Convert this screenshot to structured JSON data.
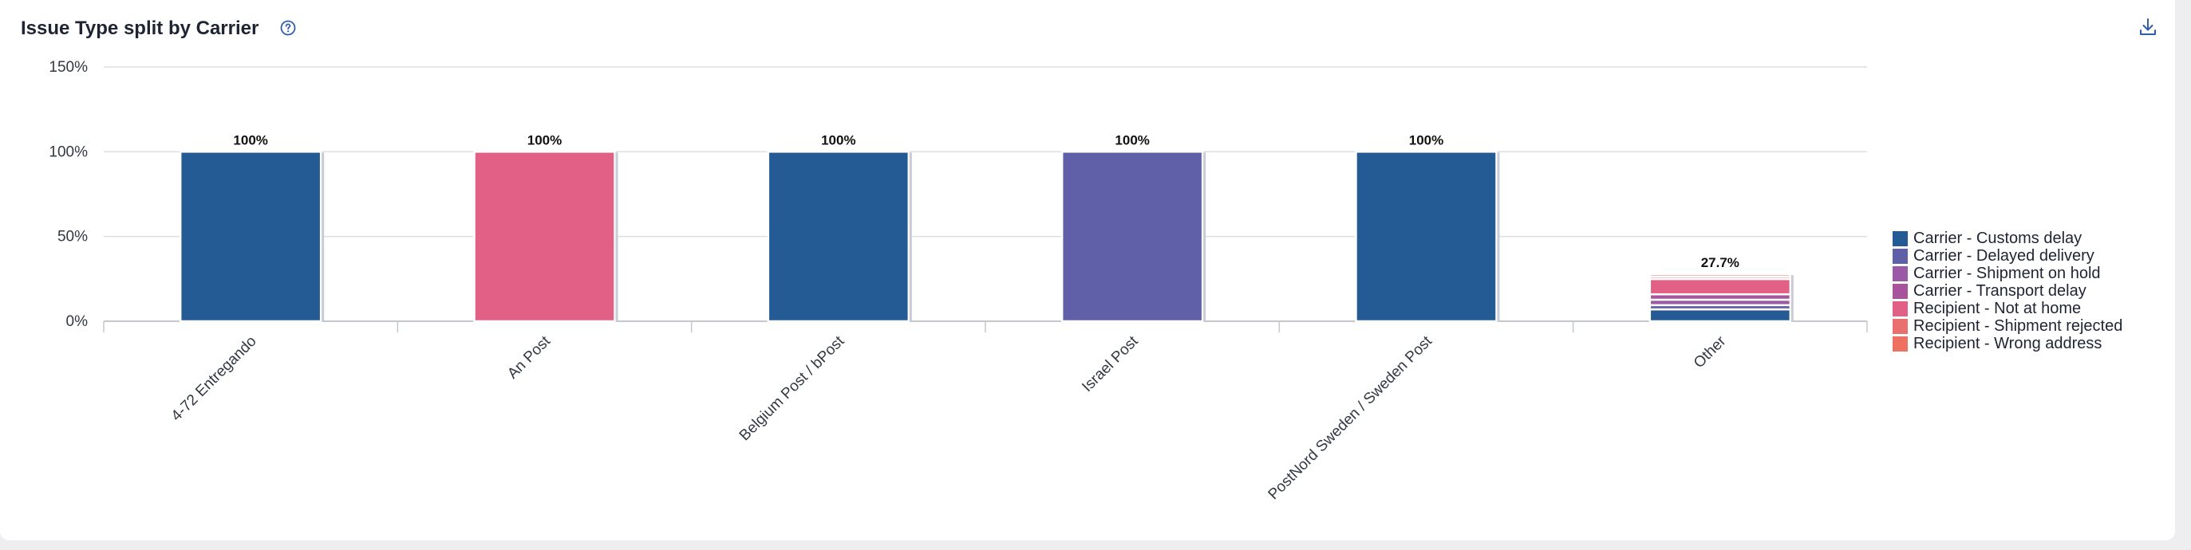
{
  "header": {
    "title": "Issue Type split by Carrier",
    "help_icon": "help-circle-icon",
    "download_icon": "download-icon"
  },
  "chart_data": {
    "type": "bar",
    "stacked": true,
    "categories": [
      "4-72 Entregando",
      "An Post",
      "Belgium Post / bPost",
      "Israel Post",
      "PostNord Sweden / Sweden Post",
      "Other"
    ],
    "y_ticks": [
      "0%",
      "50%",
      "100%",
      "150%"
    ],
    "ylim": [
      0,
      150
    ],
    "grid": true,
    "legend_position": "right",
    "series": [
      {
        "name": "Carrier - Customs delay",
        "color": "#255b94",
        "values": [
          100,
          0,
          100,
          0,
          100,
          7
        ]
      },
      {
        "name": "Carrier - Delayed delivery",
        "color": "#6060a8",
        "values": [
          0,
          0,
          0,
          100,
          0,
          2.5
        ]
      },
      {
        "name": "Carrier - Shipment on hold",
        "color": "#9b5aa6",
        "values": [
          0,
          0,
          0,
          0,
          0,
          3.2
        ]
      },
      {
        "name": "Carrier - Transport delay",
        "color": "#a8549c",
        "values": [
          0,
          0,
          0,
          0,
          0,
          3.2
        ]
      },
      {
        "name": "Recipient - Not at home",
        "color": "#e25f86",
        "values": [
          0,
          100,
          0,
          0,
          0,
          9
        ]
      },
      {
        "name": "Recipient - Shipment rejected",
        "color": "#ea6f6f",
        "values": [
          0,
          0,
          0,
          0,
          0,
          1.4
        ]
      },
      {
        "name": "Recipient - Wrong address",
        "color": "#ee7060",
        "values": [
          0,
          0,
          0,
          0,
          0,
          1.4
        ]
      }
    ],
    "data_labels": [
      "100%",
      "100%",
      "100%",
      "100%",
      "100%",
      "27.7%"
    ]
  }
}
